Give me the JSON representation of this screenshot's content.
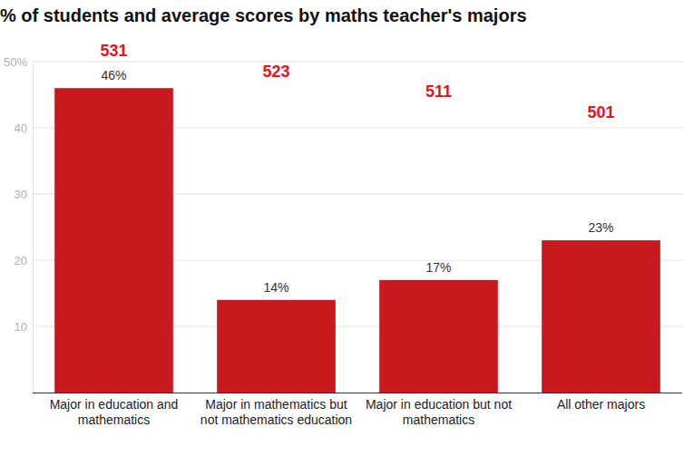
{
  "chart_data": {
    "type": "bar",
    "title": "% of students and average scores by maths teacher's majors",
    "categories": [
      "Major in education and mathematics",
      "Major in mathematics but not mathematics education",
      "Major in education but not mathematics",
      "All other majors"
    ],
    "values": [
      46,
      14,
      17,
      23
    ],
    "value_labels": [
      "46%",
      "14%",
      "17%",
      "23%"
    ],
    "data_labels": true,
    "scores": [
      531,
      523,
      511,
      501
    ],
    "color": "#c8191f",
    "ylim": [
      0,
      50
    ],
    "yticks": [
      10,
      20,
      30,
      40,
      {
        "value": 50,
        "label": "50%"
      }
    ],
    "grid": true
  }
}
